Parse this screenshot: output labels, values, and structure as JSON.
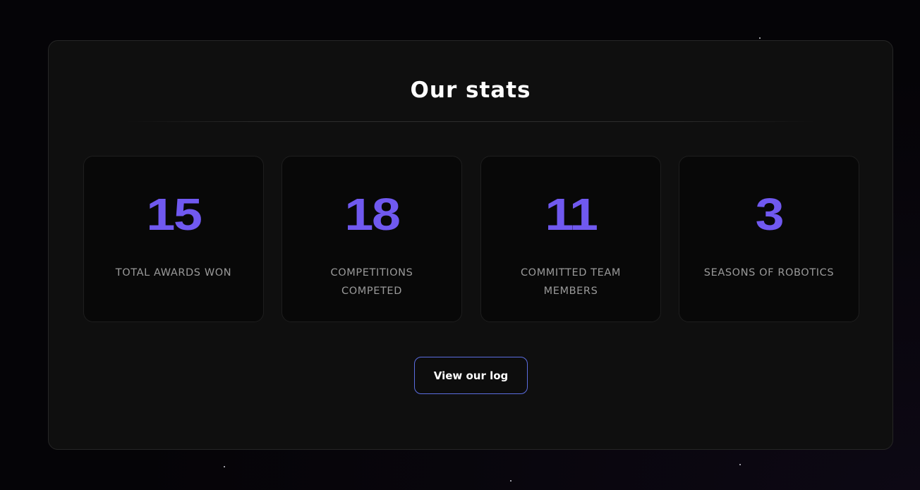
{
  "stats": {
    "title": "Our stats",
    "cards": [
      {
        "value": "15",
        "label": "TOTAL AWARDS WON"
      },
      {
        "value": "18",
        "label": "COMPETITIONS COMPETED"
      },
      {
        "value": "11",
        "label": "COMMITTED TEAM MEMBERS"
      },
      {
        "value": "3",
        "label": "SEASONS OF ROBOTICS"
      }
    ],
    "button_label": "View our log"
  },
  "colors": {
    "accent": "#7059f0",
    "button_border": "#5b6de0",
    "panel": "#0f0f0f",
    "card": "#080808"
  }
}
